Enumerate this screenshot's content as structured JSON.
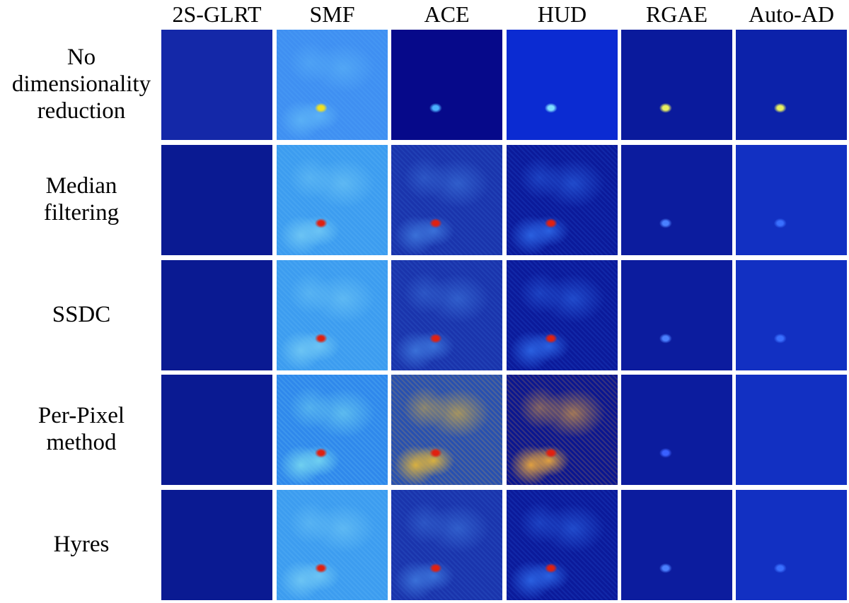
{
  "columns": [
    "2S-GLRT",
    "SMF",
    "ACE",
    "HUD",
    "RGAE",
    "Auto-AD"
  ],
  "rows": [
    "No dimensionality reduction",
    "Median filtering",
    "SSDC",
    "Per-Pixel method",
    "Hyres"
  ]
}
